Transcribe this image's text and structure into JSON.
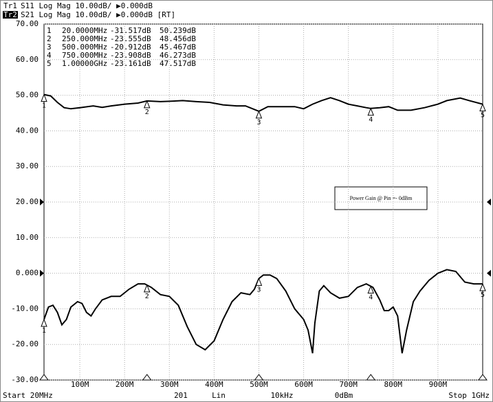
{
  "chart_data": {
    "type": "line",
    "header": [
      {
        "trace": "Tr1",
        "text": "S11 Log Mag 10.00dB/ ▶0.000dB"
      },
      {
        "trace": "Tr2",
        "text": "S21 Log Mag 10.00dB/ ▶0.000dB [RT]"
      }
    ],
    "marker_table": [
      [
        "1",
        "20.0000MHz",
        "-31.517dB",
        "50.239dB"
      ],
      [
        "2",
        "250.000MHz",
        "-23.555dB",
        "48.456dB"
      ],
      [
        "3",
        "500.000MHz",
        "-20.912dB",
        "45.467dB"
      ],
      [
        "4",
        "750.000MHz",
        "-23.908dB",
        "46.273dB"
      ],
      [
        "5",
        "1.00000GHz",
        "-23.161dB",
        "47.517dB"
      ]
    ],
    "markers_x": [
      20,
      250,
      500,
      750,
      1000
    ],
    "reference_levels": [
      20,
      0
    ],
    "annotation": "Power Gain @ Pin =- 0dBm",
    "footer": [
      "Start 20MHz",
      "201",
      "Lin",
      "10kHz",
      "0dBm",
      "Stop 1GHz"
    ],
    "xlim": [
      20,
      1000
    ],
    "xticks": [
      {
        "value": 100,
        "label": "100M"
      },
      {
        "value": 200,
        "label": "200M"
      },
      {
        "value": 300,
        "label": "300M"
      },
      {
        "value": 400,
        "label": "400M"
      },
      {
        "value": 500,
        "label": "500M"
      },
      {
        "value": 600,
        "label": "600M"
      },
      {
        "value": 700,
        "label": "700M"
      },
      {
        "value": 800,
        "label": "800M"
      },
      {
        "value": 900,
        "label": "900M"
      }
    ],
    "ylim": [
      -30,
      70
    ],
    "yticks": [
      {
        "value": -30,
        "label": "-30.00"
      },
      {
        "value": -20,
        "label": "-20.00"
      },
      {
        "value": -10,
        "label": "-10.00"
      },
      {
        "value": 0,
        "label": "0.000"
      },
      {
        "value": 10,
        "label": "10.00"
      },
      {
        "value": 20,
        "label": "20.00"
      },
      {
        "value": 30,
        "label": "30.00"
      },
      {
        "value": 40,
        "label": "40.00"
      },
      {
        "value": 50,
        "label": "50.00"
      },
      {
        "value": 60,
        "label": "60.00"
      },
      {
        "value": 70,
        "label": "70.00"
      }
    ],
    "grid": true,
    "series": [
      {
        "color": "#000000",
        "x": [
          20,
          35,
          50,
          65,
          80,
          100,
          130,
          150,
          170,
          200,
          230,
          250,
          280,
          300,
          330,
          360,
          390,
          420,
          450,
          470,
          490,
          500,
          520,
          550,
          580,
          600,
          620,
          640,
          660,
          680,
          700,
          720,
          740,
          750,
          770,
          790,
          810,
          840,
          870,
          900,
          920,
          950,
          970,
          1000
        ],
        "values": [
          50.2,
          49.8,
          48,
          46.5,
          46.2,
          46.5,
          47,
          46.6,
          47,
          47.5,
          47.8,
          48.4,
          48.2,
          48.3,
          48.5,
          48.2,
          48,
          47.3,
          47,
          47,
          46,
          45.5,
          46.8,
          46.8,
          46.8,
          46.2,
          47.5,
          48.5,
          49.3,
          48.5,
          47.5,
          47,
          46.5,
          46.3,
          46.5,
          46.8,
          45.8,
          45.8,
          46.5,
          47.5,
          48.5,
          49.2,
          48.5,
          47.5
        ]
      },
      {
        "color": "#000000",
        "x": [
          20,
          30,
          40,
          50,
          60,
          70,
          80,
          95,
          105,
          115,
          125,
          135,
          150,
          170,
          190,
          210,
          230,
          245,
          260,
          280,
          300,
          320,
          340,
          360,
          380,
          400,
          420,
          440,
          460,
          480,
          490,
          500,
          510,
          525,
          540,
          560,
          580,
          600,
          610,
          620,
          625,
          635,
          645,
          660,
          680,
          700,
          720,
          740,
          755,
          770,
          780,
          790,
          800,
          810,
          820,
          830,
          845,
          860,
          880,
          900,
          920,
          940,
          960,
          980,
          1000
        ],
        "values": [
          -13,
          -9.5,
          -9,
          -11,
          -14.5,
          -13,
          -9.5,
          -8,
          -8.5,
          -11,
          -12,
          -10,
          -7.5,
          -6.5,
          -6.5,
          -4.5,
          -3,
          -3,
          -4,
          -6,
          -6.5,
          -9,
          -15,
          -20,
          -21.5,
          -19,
          -13,
          -8,
          -5.5,
          -6,
          -4.5,
          -1.5,
          -0.5,
          -0.5,
          -1.5,
          -5,
          -10,
          -13,
          -16,
          -22.5,
          -14,
          -5,
          -3.5,
          -5.5,
          -7,
          -6.5,
          -4,
          -3,
          -4,
          -7.5,
          -10.5,
          -10.5,
          -9.5,
          -12,
          -22.5,
          -16,
          -8,
          -5,
          -2,
          0,
          1,
          0.5,
          -2.5,
          -3,
          -3
        ]
      }
    ]
  }
}
